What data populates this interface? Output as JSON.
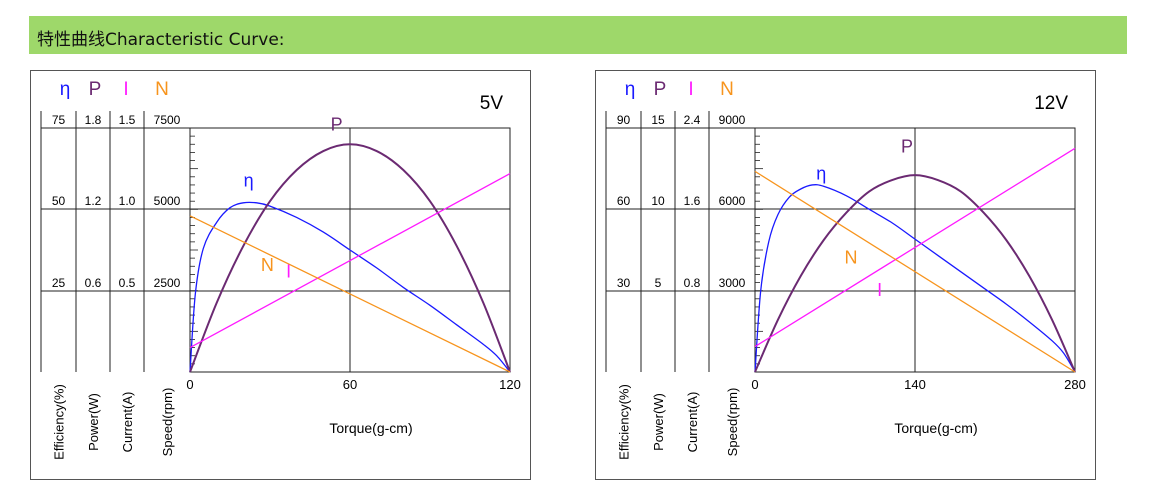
{
  "header": {
    "title": "特性曲线Characteristic Curve:"
  },
  "colors": {
    "banner": "#9ed86a",
    "efficiency": "#1a1aff",
    "power": "#6b2a72",
    "current": "#ff1aff",
    "speed": "#f7941d"
  },
  "chart_data": [
    {
      "type": "line",
      "title": "5V",
      "xlabel": "Torque(g-cm)",
      "x_ticks": [
        "0",
        "60",
        "120"
      ],
      "xlim": [
        0,
        120
      ],
      "axes": [
        {
          "symbol": "η",
          "label": "Efficiency(%)",
          "ticks": [
            "25",
            "50",
            "75"
          ],
          "max": 75,
          "color": "#1a1aff"
        },
        {
          "symbol": "P",
          "label": "Power(W)",
          "ticks": [
            "0.6",
            "1.2",
            "1.8"
          ],
          "max": 1.8,
          "color": "#6b2a72"
        },
        {
          "symbol": "I",
          "label": "Current(A)",
          "ticks": [
            "0.5",
            "1.0",
            "1.5"
          ],
          "max": 1.5,
          "color": "#ff1aff"
        },
        {
          "symbol": "N",
          "label": "Speed(rpm)",
          "ticks": [
            "2500",
            "5000",
            "7500"
          ],
          "max": 7500,
          "color": "#f7941d"
        }
      ],
      "series": [
        {
          "name": "η",
          "axis": 0,
          "x": [
            0,
            2,
            5,
            10,
            15,
            20,
            25,
            30,
            40,
            50,
            60,
            70,
            80,
            90,
            100,
            110,
            115,
            120
          ],
          "y": [
            0,
            24,
            38,
            46,
            50.5,
            52,
            52,
            51,
            47.5,
            43,
            37.5,
            32,
            26,
            20.5,
            14.5,
            8.5,
            5,
            0
          ]
        },
        {
          "name": "P",
          "axis": 1,
          "x": [
            0,
            10,
            20,
            30,
            40,
            50,
            60,
            70,
            80,
            90,
            100,
            110,
            120
          ],
          "y": [
            0,
            0.51,
            0.93,
            1.26,
            1.49,
            1.63,
            1.68,
            1.63,
            1.49,
            1.26,
            0.93,
            0.51,
            0
          ]
        },
        {
          "name": "I",
          "axis": 2,
          "x": [
            0,
            120
          ],
          "y": [
            0.15,
            1.22
          ]
        },
        {
          "name": "N",
          "axis": 3,
          "x": [
            0,
            120
          ],
          "y": [
            4800,
            0
          ]
        }
      ],
      "curve_labels": [
        {
          "text": "η",
          "series": 0,
          "x": 22,
          "y": 57
        },
        {
          "text": "P",
          "series": 1,
          "x": 55,
          "y": 1.78
        },
        {
          "text": "N",
          "series": 3,
          "x": 29,
          "y": 3100
        },
        {
          "text": "I",
          "series": 2,
          "x": 37,
          "y": 0.58
        }
      ]
    },
    {
      "type": "line",
      "title": "12V",
      "xlabel": "Torque(g-cm)",
      "x_ticks": [
        "0",
        "140",
        "280"
      ],
      "xlim": [
        0,
        280
      ],
      "axes": [
        {
          "symbol": "η",
          "label": "Efficiency(%)",
          "ticks": [
            "30",
            "60",
            "90"
          ],
          "max": 90,
          "color": "#1a1aff"
        },
        {
          "symbol": "P",
          "label": "Power(W)",
          "ticks": [
            "5",
            "10",
            "15"
          ],
          "max": 15,
          "color": "#6b2a72"
        },
        {
          "symbol": "I",
          "label": "Current(A)",
          "ticks": [
            "0.8",
            "1.6",
            "2.4"
          ],
          "max": 2.4,
          "color": "#ff1aff"
        },
        {
          "symbol": "N",
          "label": "Speed(rpm)",
          "ticks": [
            "3000",
            "6000",
            "9000"
          ],
          "max": 9000,
          "color": "#f7941d"
        }
      ],
      "series": [
        {
          "name": "η",
          "axis": 0,
          "x": [
            0,
            5,
            12,
            20,
            30,
            40,
            50,
            60,
            80,
            100,
            120,
            140,
            160,
            180,
            200,
            220,
            240,
            260,
            270,
            280
          ],
          "y": [
            0,
            30,
            48,
            58,
            64.5,
            67.5,
            69,
            68.5,
            65,
            60,
            55,
            49,
            43,
            37,
            31,
            25,
            18.5,
            11.5,
            7,
            0
          ]
        },
        {
          "name": "P",
          "axis": 1,
          "x": [
            0,
            20,
            40,
            60,
            80,
            100,
            120,
            140,
            160,
            180,
            200,
            220,
            240,
            260,
            280
          ],
          "y": [
            0,
            3.2,
            5.9,
            8.1,
            9.8,
            11.1,
            11.8,
            12.1,
            11.8,
            11.1,
            9.8,
            8.1,
            5.9,
            3.2,
            0
          ]
        },
        {
          "name": "I",
          "axis": 2,
          "x": [
            0,
            280
          ],
          "y": [
            0.25,
            2.2
          ]
        },
        {
          "name": "N",
          "axis": 3,
          "x": [
            0,
            280
          ],
          "y": [
            7400,
            0
          ]
        }
      ],
      "curve_labels": [
        {
          "text": "η",
          "series": 0,
          "x": 58,
          "y": 71
        },
        {
          "text": "P",
          "series": 1,
          "x": 133,
          "y": 13.5
        },
        {
          "text": "N",
          "series": 3,
          "x": 84,
          "y": 4000
        },
        {
          "text": "I",
          "series": 2,
          "x": 109,
          "y": 0.75
        }
      ]
    }
  ]
}
